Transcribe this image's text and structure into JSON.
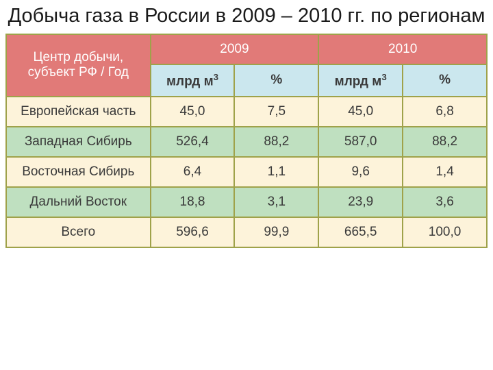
{
  "title": "Добыча газа в России в 2009 – 2010 гг. по регионам",
  "table": {
    "type": "table",
    "border_color": "#9fa24a",
    "colors": {
      "header_bg": "#e17a78",
      "header_text": "#ffffff",
      "subheader_bg": "#cbe7ee",
      "row_alt_a": "#fdf3da",
      "row_alt_b": "#bfe0c0",
      "text": "#3a3a3a"
    },
    "col_widths": [
      "30%",
      "17.5%",
      "17.5%",
      "17.5%",
      "17.5%"
    ],
    "header_rowlabel": "Центр добычи, субъект РФ / Год",
    "year_headers": [
      "2009",
      "2010"
    ],
    "sub_headers": [
      "млрд м",
      "%",
      "млрд м",
      "%"
    ],
    "sub_header_sup": "3",
    "rows": [
      {
        "label": "Европейская часть",
        "cells": [
          "45,0",
          "7,5",
          "45,0",
          "6,8"
        ]
      },
      {
        "label": "Западная Сибирь",
        "cells": [
          "526,4",
          "88,2",
          "587,0",
          "88,2"
        ]
      },
      {
        "label": "Восточная Сибирь",
        "cells": [
          "6,4",
          "1,1",
          "9,6",
          "1,4"
        ]
      },
      {
        "label": "Дальний Восток",
        "cells": [
          "18,8",
          "3,1",
          "23,9",
          "3,6"
        ]
      },
      {
        "label": "Всего",
        "cells": [
          "596,6",
          "99,9",
          "665,5",
          "100,0"
        ]
      }
    ],
    "title_fontsize": 29,
    "cell_fontsize": 19
  }
}
